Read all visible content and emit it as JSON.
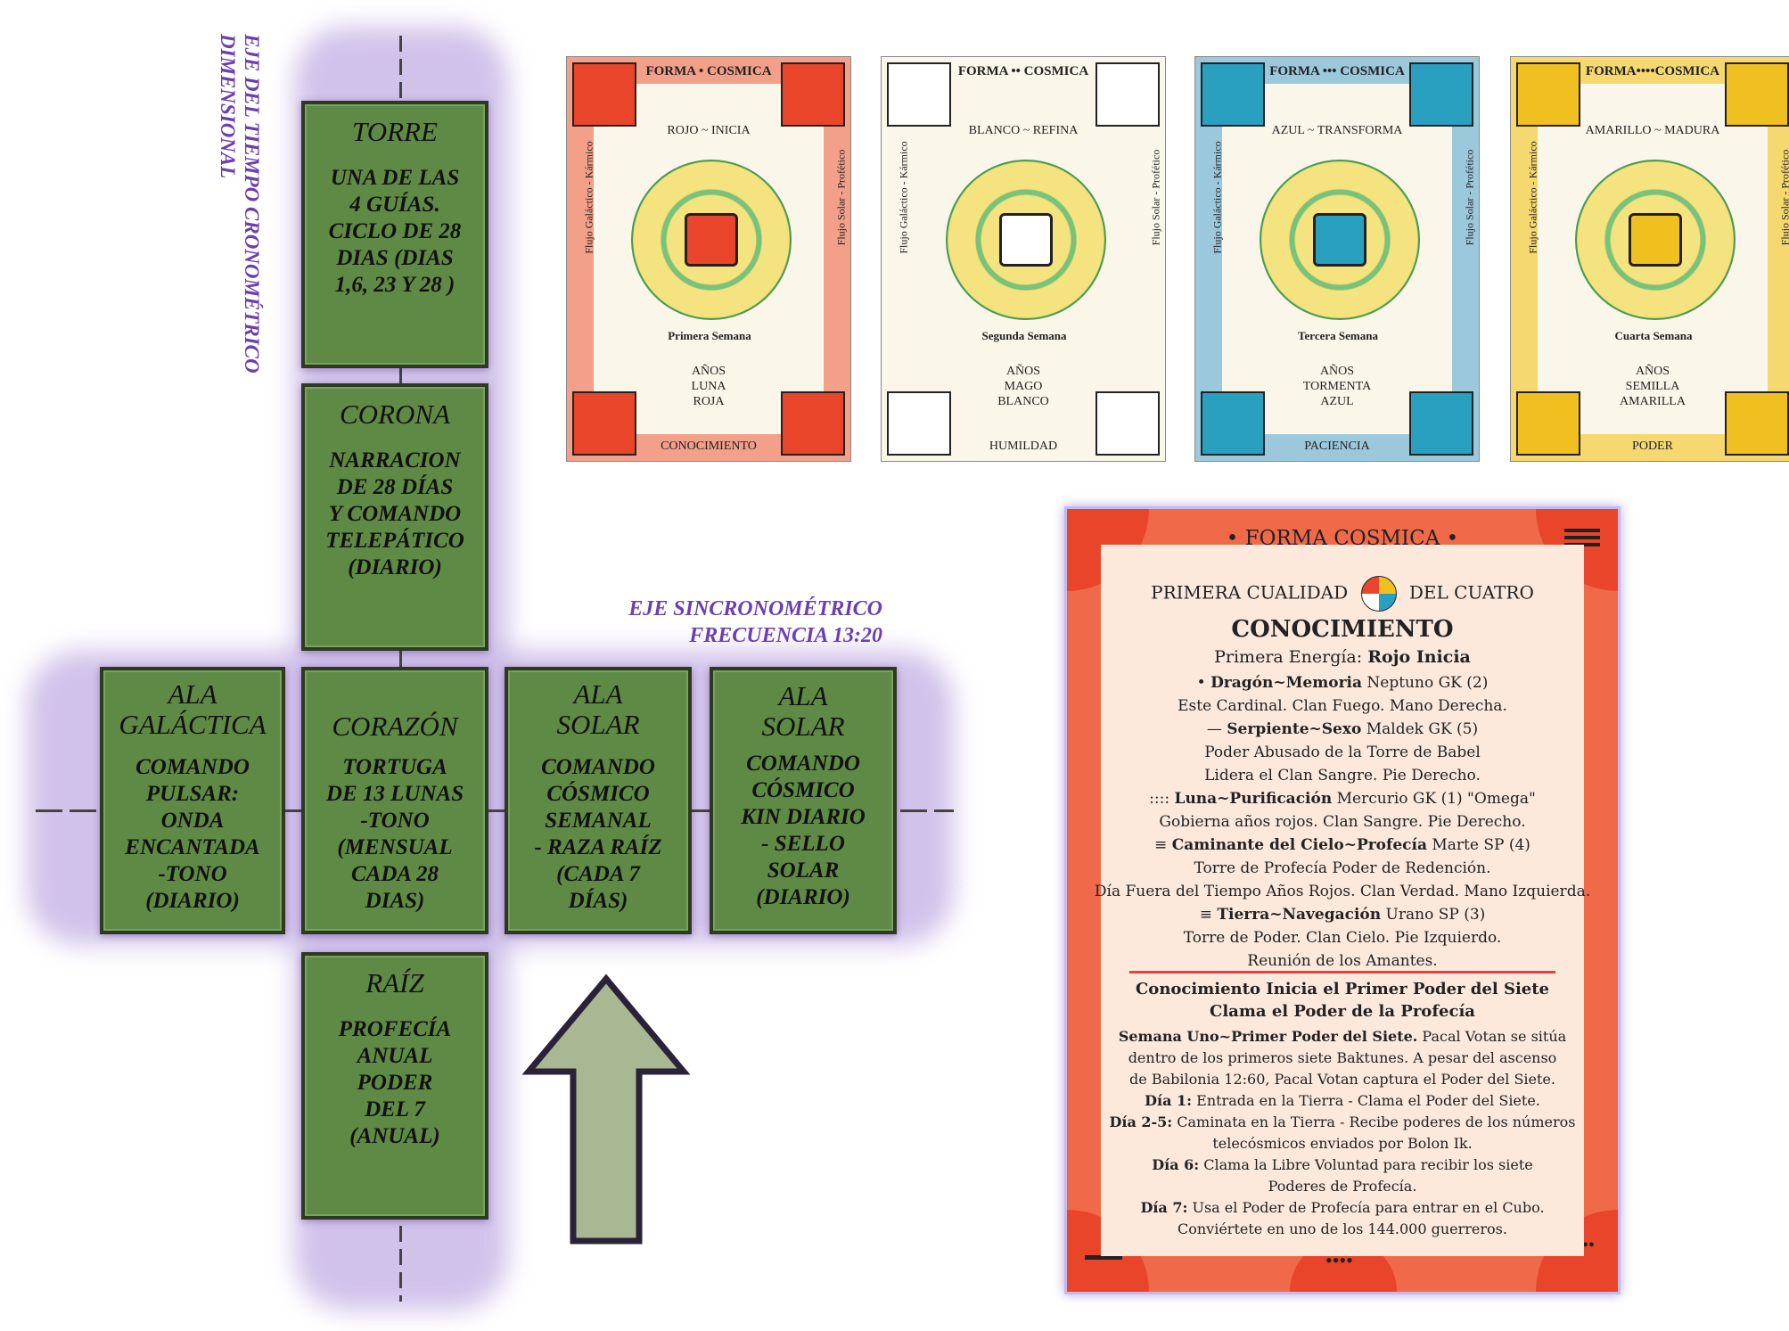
{
  "axes": {
    "vertical_title": [
      "EJE DEL TIEMPO CRONOMÉTRICO",
      "DIMENSIONAL"
    ],
    "horizontal_title": [
      "EJE SINCRONOMÉTRICO",
      "FRECUENCIA 13:20"
    ]
  },
  "boxes": {
    "torre": {
      "title": "TORRE",
      "desc": [
        "UNA DE LAS",
        "4 GUÍAS.",
        "CICLO DE 28",
        "DIAS (DIAS",
        "1,6, 23 Y 28 )"
      ]
    },
    "corona": {
      "title": "CORONA",
      "desc": [
        "NARRACION",
        "DE 28 DÍAS",
        "Y COMANDO",
        "TELEPÁTICO",
        "(DIARIO)"
      ]
    },
    "ala_galactica": {
      "title": [
        "ALA",
        "GALÁCTICA"
      ],
      "desc": [
        "COMANDO",
        "PULSAR:",
        "ONDA",
        "ENCANTADA",
        "-TONO",
        "(DIARIO)"
      ]
    },
    "corazon": {
      "title": "CORAZÓN",
      "desc": [
        "TORTUGA",
        "DE 13 LUNAS",
        "-TONO",
        "(MENSUAL",
        "CADA 28",
        "DIAS)"
      ]
    },
    "ala_solar_1": {
      "title": [
        "ALA",
        "SOLAR"
      ],
      "desc": [
        "COMANDO",
        "CÓSMICO",
        "SEMANAL",
        "- RAZA RAÍZ",
        "(CADA 7",
        "DÍAS)"
      ]
    },
    "ala_solar_2": {
      "title": [
        "ALA",
        "SOLAR"
      ],
      "desc": [
        "COMANDO",
        "CÓSMICO",
        "KIN DIARIO",
        "- SELLO",
        "SOLAR",
        "(DIARIO)"
      ]
    },
    "raiz": {
      "title": "RAÍZ",
      "desc": [
        "PROFECÍA",
        "ANUAL",
        "PODER",
        "DEL 7",
        "(ANUAL)"
      ]
    }
  },
  "cards": [
    {
      "title": "FORMA • COSMICA",
      "color_line": "ROJO ~ INICIA",
      "week": "Primera Semana",
      "bottom": [
        "AÑOS",
        "LUNA",
        "ROJA"
      ],
      "footer": "CONOCIMIENTO",
      "left": "Flujo Galáctico - Kármico",
      "right": "Flujo Solar - Profético",
      "bg": "#f2a08a",
      "glyph_color": "#e8452b"
    },
    {
      "title": "FORMA •• COSMICA",
      "color_line": "BLANCO ~ REFINA",
      "week": "Segunda Semana",
      "bottom": [
        "AÑOS",
        "MAGO",
        "BLANCO"
      ],
      "footer": "HUMILDAD",
      "left": "Flujo Galáctico - Kármico",
      "right": "Flujo Solar - Profético",
      "bg": "#fbf6ea",
      "glyph_color": "#ffffff"
    },
    {
      "title": "FORMA ••• COSMICA",
      "color_line": "AZUL ~ TRANSFORMA",
      "week": "Tercera Semana",
      "bottom": [
        "AÑOS",
        "TORMENTA",
        "AZUL"
      ],
      "footer": "PACIENCIA",
      "left": "Flujo Galáctico - Kármico",
      "right": "Flujo Solar - Profético",
      "bg": "#9cc8dc",
      "glyph_color": "#2aa0c0"
    },
    {
      "title": "FORMA••••COSMICA",
      "color_line": "AMARILLO ~ MADURA",
      "week": "Cuarta Semana",
      "bottom": [
        "AÑOS",
        "SEMILLA",
        "AMARILLA"
      ],
      "footer": "PODER",
      "left": "Flujo Galáctico - Kármico",
      "right": "Flujo Solar - Profético",
      "bg": "#f5d870",
      "glyph_color": "#f0c020"
    }
  ],
  "big_card": {
    "header": "• FORMA COSMICA •",
    "quality_left": "PRIMERA CUALIDAD",
    "quality_right": "DEL CUATRO",
    "title": "CONOCIMIENTO",
    "energy_prefix": "Primera Energía:",
    "energy": "Rojo Inicia",
    "entries": [
      {
        "mark": "•",
        "bold": "Dragón~Memoria",
        "rest": "Neptuno GK (2)"
      },
      {
        "mark": "",
        "bold": "",
        "rest": "Este Cardinal. Clan Fuego. Mano Derecha."
      },
      {
        "mark": "—",
        "bold": "Serpiente~Sexo",
        "rest": "Maldek GK (5)"
      },
      {
        "mark": "",
        "bold": "",
        "rest": "Poder Abusado de la Torre de Babel"
      },
      {
        "mark": "",
        "bold": "",
        "rest": "Lidera el Clan Sangre. Pie Derecho."
      },
      {
        "mark": "::::",
        "bold": "Luna~Purificación",
        "rest": "Mercurio GK (1) \"Omega\""
      },
      {
        "mark": "",
        "bold": "",
        "rest": "Gobierna años rojos. Clan Sangre. Pie Derecho."
      },
      {
        "mark": "≡",
        "bold": "Caminante del Cielo~Profecía",
        "rest": "Marte SP (4)"
      },
      {
        "mark": "",
        "bold": "",
        "rest": "Torre de Profecía Poder de Redención."
      },
      {
        "mark": "",
        "bold": "",
        "rest": "Día Fuera del Tiempo Años Rojos. Clan Verdad. Mano Izquierda."
      },
      {
        "mark": "≡",
        "bold": "Tierra~Navegación",
        "rest": "Urano SP (3)"
      },
      {
        "mark": "",
        "bold": "",
        "rest": "Torre de Poder. Clan Cielo. Pie Izquierdo."
      },
      {
        "mark": "",
        "bold": "",
        "rest": "Reunión de los Amantes."
      }
    ],
    "sub1": "Conocimiento Inicia el Primer Poder del Siete",
    "sub2": "Clama el Poder de la Profecía",
    "para": [
      {
        "bold": "Semana Uno~Primer Poder del Siete.",
        "rest": " Pacal Votan se sitúa"
      },
      {
        "bold": "",
        "rest": "dentro de los primeros siete Baktunes. A pesar del ascenso"
      },
      {
        "bold": "",
        "rest": "de Babilonia 12:60, Pacal Votan captura el Poder del Siete."
      },
      {
        "bold": "Día 1:",
        "rest": " Entrada en la Tierra - Clama el Poder del Siete."
      },
      {
        "bold": "Día 2-5:",
        "rest": " Caminata en la Tierra - Recibe poderes de los números"
      },
      {
        "bold": "",
        "rest": "telecósmicos enviados por Bolon Ik."
      },
      {
        "bold": "Día 6:",
        "rest": " Clama la Libre Voluntad para recibir los siete"
      },
      {
        "bold": "",
        "rest": "Poderes de Profecía."
      },
      {
        "bold": "Día 7:",
        "rest": " Usa el Poder de Profecía para entrar en el Cubo."
      },
      {
        "bold": "",
        "rest": "Conviértete en uno de los 144.000 guerreros."
      }
    ]
  },
  "colors": {
    "box_green": "#5f8a45",
    "glow": "#c9b8e6",
    "axis_label": "#6a3fb0",
    "arrow": "#a9b892"
  }
}
